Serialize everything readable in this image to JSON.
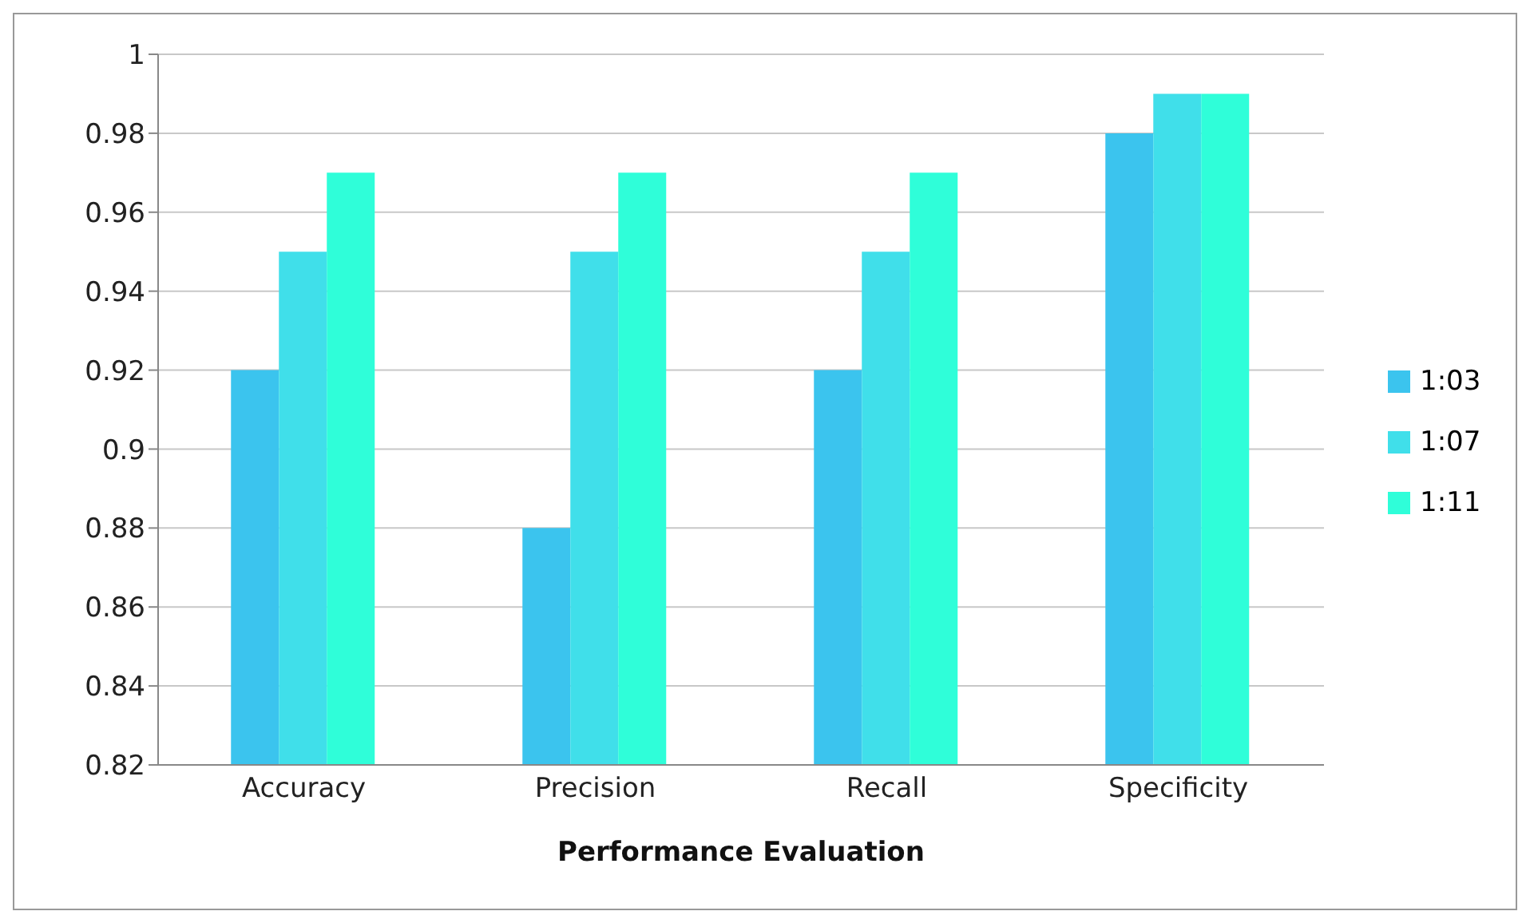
{
  "chart_data": {
    "type": "bar",
    "xlabel": "Performance Evaluation",
    "categories": [
      "Accuracy",
      "Precision",
      "Recall",
      "Specificity"
    ],
    "series": [
      {
        "name": "1:03",
        "color": "#3bc4ee",
        "values": [
          0.92,
          0.88,
          0.92,
          0.98
        ]
      },
      {
        "name": "1:07",
        "color": "#40dfea",
        "values": [
          0.95,
          0.95,
          0.95,
          0.99
        ]
      },
      {
        "name": "1:11",
        "color": "#2ffed9",
        "values": [
          0.97,
          0.97,
          0.97,
          0.99
        ]
      }
    ],
    "ylim": [
      0.82,
      1
    ],
    "yticks": [
      0.82,
      0.84,
      0.86,
      0.88,
      0.9,
      0.92,
      0.94,
      0.96,
      0.98,
      1
    ],
    "grid": "y",
    "legend": "right"
  }
}
